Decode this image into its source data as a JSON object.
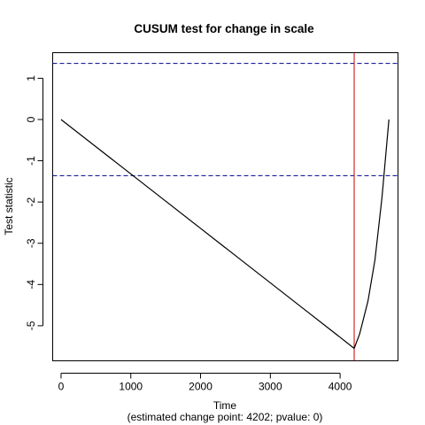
{
  "chart_data": {
    "type": "line",
    "title": "CUSUM test for change in scale",
    "xlabel": "Time",
    "xlabel_sub": "(estimated change point: 4202; pvalue: 0)",
    "ylabel": "Test statistic",
    "xlim": [
      -120,
      4830
    ],
    "ylim": [
      -5.85,
      1.62
    ],
    "xticks": [
      0,
      1000,
      2000,
      3000,
      4000
    ],
    "xtick_labels": [
      "0",
      "1000",
      "2000",
      "3000",
      "4000"
    ],
    "yticks": [
      1,
      0,
      -1,
      -2,
      -3,
      -4,
      -5
    ],
    "ytick_labels": [
      "1",
      "0",
      "-1",
      "-2",
      "-3",
      "-4",
      "-5"
    ],
    "series": [
      {
        "color": "#000000",
        "x": [
          0,
          500,
          1000,
          1500,
          2000,
          2500,
          3000,
          3500,
          4000,
          4202,
          4280,
          4400,
          4500,
          4600,
          4650,
          4700
        ],
        "y": [
          0,
          -0.66,
          -1.32,
          -1.98,
          -2.64,
          -3.3,
          -3.96,
          -4.62,
          -5.28,
          -5.55,
          -5.2,
          -4.4,
          -3.4,
          -1.9,
          -0.95,
          0
        ]
      }
    ],
    "hlines": [
      {
        "y": 1.36,
        "color": "#00008B",
        "style": "dashed"
      },
      {
        "y": -1.36,
        "color": "#00008B",
        "style": "dashed"
      }
    ],
    "vlines": [
      {
        "x": 4202,
        "color": "#CC0000",
        "style": "solid"
      }
    ],
    "grid": false,
    "legend": "none"
  }
}
